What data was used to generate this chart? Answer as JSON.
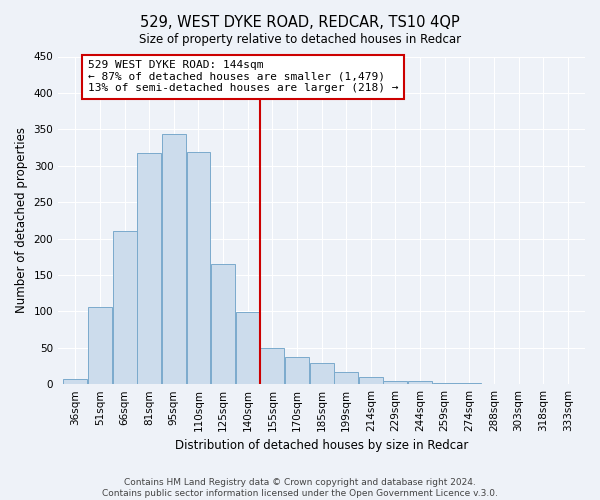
{
  "title": "529, WEST DYKE ROAD, REDCAR, TS10 4QP",
  "subtitle": "Size of property relative to detached houses in Redcar",
  "xlabel": "Distribution of detached houses by size in Redcar",
  "ylabel": "Number of detached properties",
  "bar_color": "#ccdcec",
  "bar_edge_color": "#7aaacc",
  "categories": [
    "36sqm",
    "51sqm",
    "66sqm",
    "81sqm",
    "95sqm",
    "110sqm",
    "125sqm",
    "140sqm",
    "155sqm",
    "170sqm",
    "185sqm",
    "199sqm",
    "214sqm",
    "229sqm",
    "244sqm",
    "259sqm",
    "274sqm",
    "288sqm",
    "303sqm",
    "318sqm",
    "333sqm"
  ],
  "values": [
    7,
    106,
    210,
    317,
    343,
    319,
    165,
    99,
    50,
    37,
    29,
    17,
    10,
    5,
    4,
    1,
    1,
    0,
    0,
    0,
    0
  ],
  "vline_index": 7.5,
  "vline_color": "#cc0000",
  "annotation_text": "529 WEST DYKE ROAD: 144sqm\n← 87% of detached houses are smaller (1,479)\n13% of semi-detached houses are larger (218) →",
  "annotation_box_color": "#ffffff",
  "annotation_box_edge": "#cc0000",
  "ylim": [
    0,
    450
  ],
  "yticks": [
    0,
    50,
    100,
    150,
    200,
    250,
    300,
    350,
    400,
    450
  ],
  "footer1": "Contains HM Land Registry data © Crown copyright and database right 2024.",
  "footer2": "Contains public sector information licensed under the Open Government Licence v.3.0.",
  "bg_color": "#eef2f8",
  "plot_bg_color": "#eef2f8",
  "title_fontsize": 10.5,
  "subtitle_fontsize": 8.5,
  "axis_label_fontsize": 8.5,
  "tick_fontsize": 7.5,
  "annotation_fontsize": 8.0,
  "footer_fontsize": 6.5
}
